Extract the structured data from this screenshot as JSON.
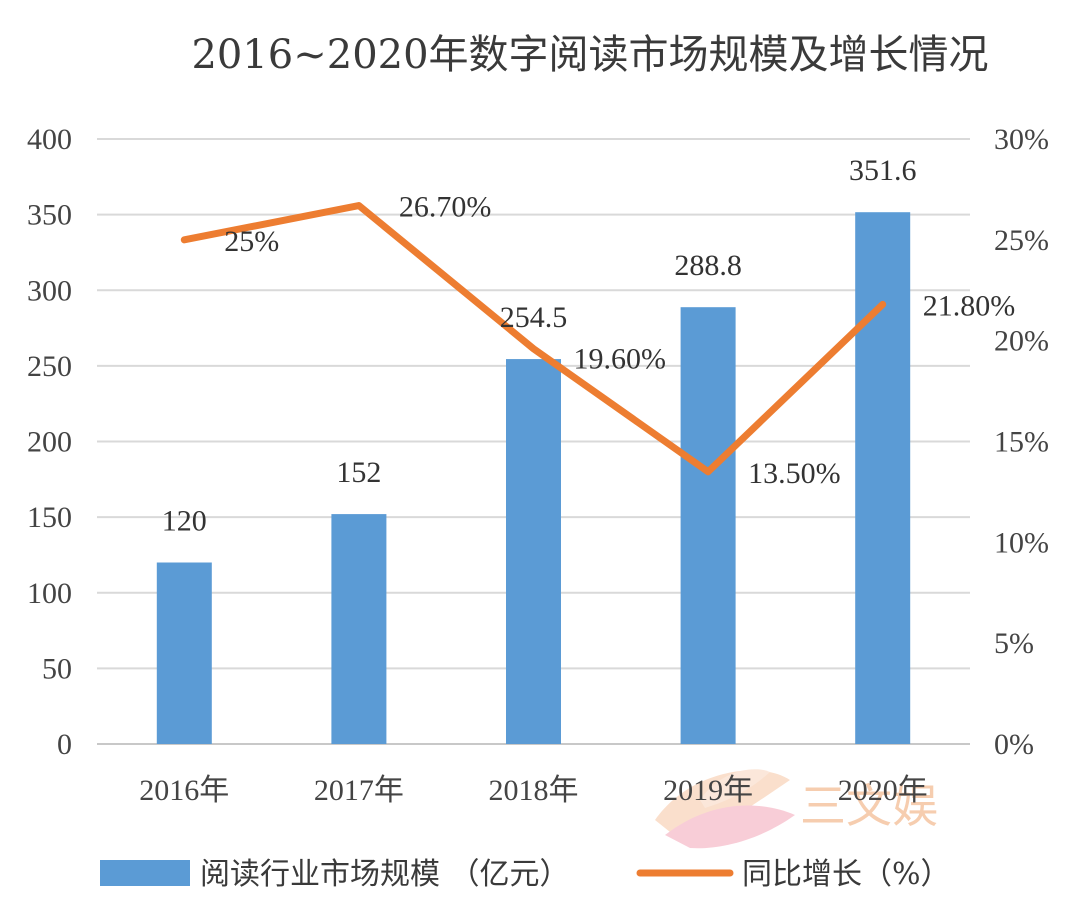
{
  "chart_data": {
    "type": "bar",
    "title": "2016~2020年数字阅读市场规模及增长情况",
    "categories": [
      "2016年",
      "2017年",
      "2018年",
      "2019年",
      "2020年"
    ],
    "series": [
      {
        "name": "阅读行业市场规模 （亿元）",
        "type": "bar",
        "axis": "left",
        "color": "#5b9bd5",
        "values": [
          120,
          152,
          254.5,
          288.8,
          351.6
        ],
        "labels": [
          "120",
          "152",
          "254.5",
          "288.8",
          "351.6"
        ]
      },
      {
        "name": "同比增长（%）",
        "type": "line",
        "axis": "right",
        "color": "#ed7d31",
        "values": [
          25,
          26.7,
          19.6,
          13.5,
          21.8
        ],
        "labels": [
          "25%",
          "26.70%",
          "19.60%",
          "13.50%",
          "21.80%"
        ]
      }
    ],
    "y_left": {
      "min": 0,
      "max": 400,
      "step": 50,
      "ticks": [
        "0",
        "50",
        "100",
        "150",
        "200",
        "250",
        "300",
        "350",
        "400"
      ]
    },
    "y_right": {
      "min": 0,
      "max": 30,
      "step": 5,
      "ticks": [
        "0%",
        "5%",
        "10%",
        "15%",
        "20%",
        "25%",
        "30%"
      ]
    },
    "grid": true,
    "legend_position": "bottom"
  },
  "watermark": {
    "text": "三文娱",
    "logo_color": "#f4b183"
  }
}
